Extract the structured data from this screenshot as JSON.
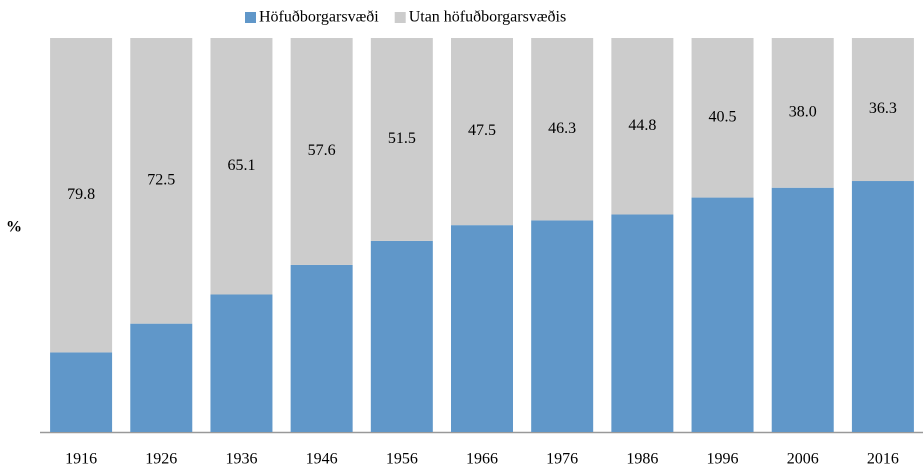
{
  "chart_data": {
    "type": "stacked-bar",
    "y_label": "%",
    "categories": [
      "1916",
      "1926",
      "1936",
      "1946",
      "1956",
      "1966",
      "1976",
      "1986",
      "1996",
      "2006",
      "2016"
    ],
    "series": [
      {
        "name": "Höfuðborgarsvæði",
        "color": "#6097c9",
        "values": [
          20.2,
          27.5,
          34.9,
          42.4,
          48.5,
          52.5,
          53.7,
          55.2,
          59.5,
          62.0,
          63.7
        ]
      },
      {
        "name": "Utan höfuðborgarsvæðis",
        "color": "#cccccc",
        "values": [
          79.8,
          72.5,
          65.1,
          57.6,
          51.5,
          47.5,
          46.3,
          44.8,
          40.5,
          38.0,
          36.3
        ],
        "value_labels": [
          "79.8",
          "72.5",
          "65.1",
          "57.6",
          "51.5",
          "47.5",
          "46.3",
          "44.8",
          "40.5",
          "38.0",
          "36.3"
        ]
      }
    ],
    "ylim": [
      0,
      100
    ],
    "legend": "top"
  }
}
